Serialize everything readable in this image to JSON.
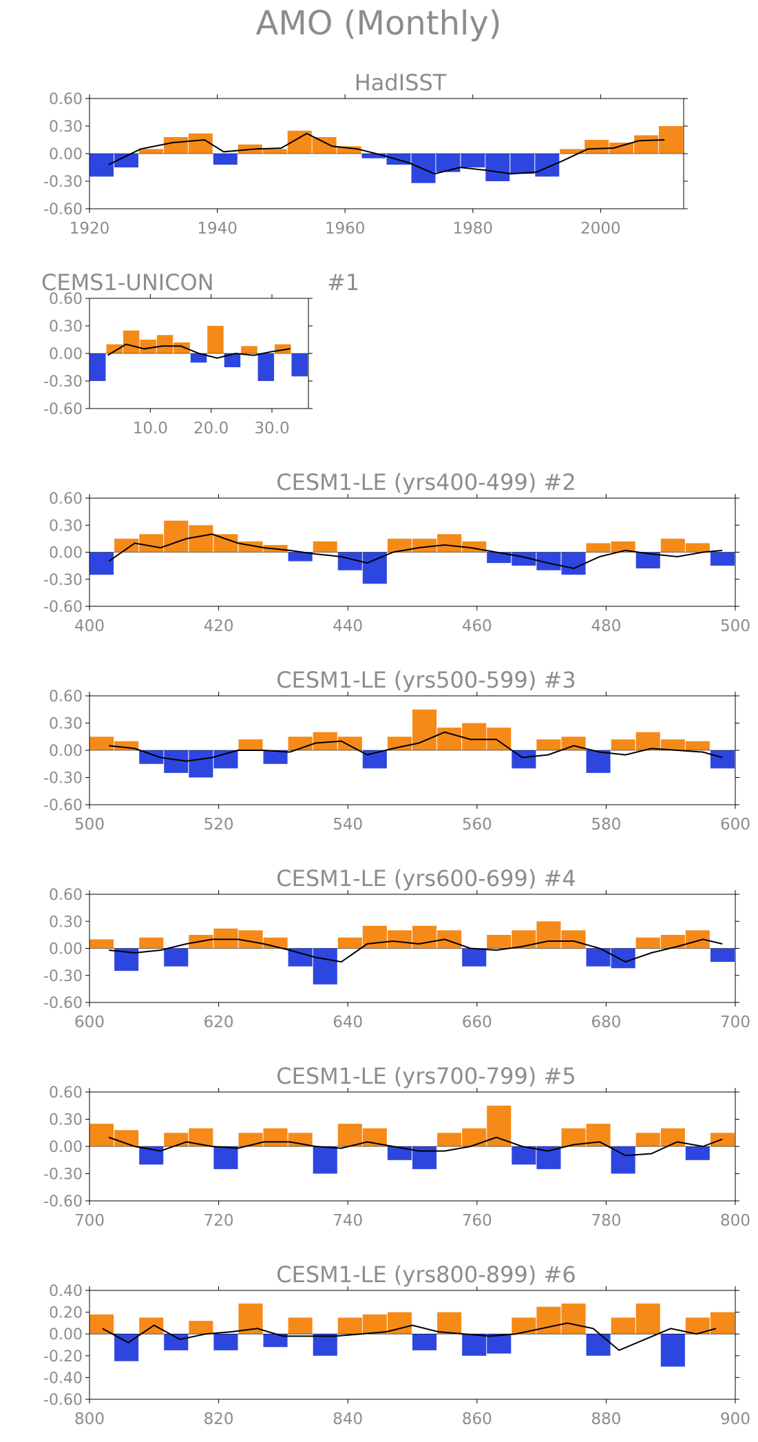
{
  "figure": {
    "title": "AMO (Monthly)"
  },
  "colors": {
    "positive": "#f58a18",
    "negative": "#2e46e0",
    "smooth": "#000000",
    "text": "#8c8c8c"
  },
  "chart_data": [
    {
      "type": "bar",
      "title": "HadISST",
      "x_range": [
        1920,
        2013
      ],
      "ylim": [
        -0.6,
        0.6
      ],
      "y_ticks": [
        "0.60",
        "0.30",
        "0.00",
        "-0.30",
        "-0.60"
      ],
      "x_ticks": [
        "1920",
        "1940",
        "1960",
        "1980",
        "2000"
      ],
      "x_tick_values": [
        1920,
        1940,
        1960,
        1980,
        2000
      ],
      "x": [
        1920,
        1924,
        1928,
        1932,
        1936,
        1940,
        1944,
        1948,
        1952,
        1956,
        1960,
        1964,
        1968,
        1972,
        1976,
        1980,
        1984,
        1988,
        1992,
        1996,
        2000,
        2004,
        2008,
        2012
      ],
      "values": [
        -0.25,
        -0.15,
        0.05,
        0.18,
        0.22,
        -0.12,
        0.1,
        0.05,
        0.25,
        0.18,
        0.08,
        -0.05,
        -0.12,
        -0.32,
        -0.2,
        -0.15,
        -0.3,
        -0.22,
        -0.25,
        0.05,
        0.15,
        0.12,
        0.2,
        0.3
      ],
      "smooth_x": [
        1923,
        1928,
        1933,
        1938,
        1941,
        1946,
        1950,
        1954,
        1958,
        1962,
        1966,
        1970,
        1974,
        1978,
        1982,
        1986,
        1990,
        1994,
        1998,
        2002,
        2006,
        2010
      ],
      "smooth": [
        -0.12,
        0.05,
        0.12,
        0.15,
        0.02,
        0.05,
        0.06,
        0.22,
        0.08,
        0.05,
        -0.02,
        -0.1,
        -0.22,
        -0.15,
        -0.18,
        -0.22,
        -0.2,
        -0.08,
        0.05,
        0.06,
        0.14,
        0.15
      ]
    },
    {
      "type": "bar",
      "title": "CEMS1-UNICON",
      "label": "#1",
      "x_range": [
        0,
        36
      ],
      "ylim": [
        -0.6,
        0.6
      ],
      "y_ticks": [
        "0.60",
        "0.30",
        "0.00",
        "-0.30",
        "-0.60"
      ],
      "x_ticks": [
        "10.0",
        "20.0",
        "30.0"
      ],
      "x_tick_values": [
        10,
        20,
        30
      ],
      "x": [
        0,
        3,
        6,
        9,
        12,
        15,
        18,
        21,
        24,
        27,
        30,
        33,
        36
      ],
      "values": [
        -0.3,
        0.1,
        0.25,
        0.15,
        0.2,
        0.12,
        -0.1,
        0.3,
        -0.15,
        0.08,
        -0.3,
        0.1,
        -0.25
      ],
      "smooth_x": [
        3,
        6,
        9,
        12,
        15,
        18,
        21,
        24,
        27,
        30,
        33
      ],
      "smooth": [
        -0.02,
        0.1,
        0.05,
        0.08,
        0.08,
        0.0,
        -0.05,
        0.0,
        -0.02,
        0.02,
        0.05
      ]
    },
    {
      "type": "bar",
      "title": "CESM1-LE (yrs400-499) #2",
      "x_range": [
        400,
        500
      ],
      "ylim": [
        -0.6,
        0.6
      ],
      "y_ticks": [
        "0.60",
        "0.30",
        "0.00",
        "-0.30",
        "-0.60"
      ],
      "x_ticks": [
        "400",
        "420",
        "440",
        "460",
        "480",
        "500"
      ],
      "x_tick_values": [
        400,
        420,
        440,
        460,
        480,
        500
      ],
      "x": [
        400,
        404,
        408,
        412,
        416,
        420,
        424,
        428,
        432,
        436,
        440,
        444,
        448,
        452,
        456,
        460,
        464,
        468,
        472,
        476,
        480,
        484,
        488,
        492,
        496,
        500
      ],
      "values": [
        -0.25,
        0.15,
        0.2,
        0.35,
        0.3,
        0.2,
        0.12,
        0.08,
        -0.1,
        0.12,
        -0.2,
        -0.35,
        0.15,
        0.15,
        0.2,
        0.12,
        -0.12,
        -0.15,
        -0.2,
        -0.25,
        0.1,
        0.12,
        -0.18,
        0.15,
        0.1,
        -0.15
      ],
      "smooth_x": [
        403,
        407,
        411,
        415,
        419,
        423,
        427,
        431,
        435,
        439,
        443,
        447,
        451,
        455,
        459,
        463,
        467,
        471,
        475,
        479,
        483,
        487,
        491,
        495,
        498
      ],
      "smooth": [
        -0.1,
        0.1,
        0.05,
        0.15,
        0.2,
        0.1,
        0.05,
        0.02,
        -0.02,
        -0.05,
        -0.12,
        0.0,
        0.05,
        0.08,
        0.05,
        0.0,
        -0.05,
        -0.12,
        -0.18,
        -0.05,
        0.02,
        -0.02,
        -0.05,
        0.0,
        0.02
      ]
    },
    {
      "type": "bar",
      "title": "CESM1-LE (yrs500-599) #3",
      "x_range": [
        500,
        600
      ],
      "ylim": [
        -0.6,
        0.6
      ],
      "y_ticks": [
        "0.60",
        "0.30",
        "0.00",
        "-0.30",
        "-0.60"
      ],
      "x_ticks": [
        "500",
        "520",
        "540",
        "560",
        "580",
        "600"
      ],
      "x_tick_values": [
        500,
        520,
        540,
        560,
        580,
        600
      ],
      "x": [
        500,
        504,
        508,
        512,
        516,
        520,
        524,
        528,
        532,
        536,
        540,
        544,
        548,
        552,
        556,
        560,
        564,
        568,
        572,
        576,
        580,
        584,
        588,
        592,
        596,
        600
      ],
      "values": [
        0.15,
        0.1,
        -0.15,
        -0.25,
        -0.3,
        -0.2,
        0.12,
        -0.15,
        0.15,
        0.2,
        0.15,
        -0.2,
        0.15,
        0.45,
        0.25,
        0.3,
        0.25,
        -0.2,
        0.12,
        0.15,
        -0.25,
        0.12,
        0.2,
        0.12,
        0.1,
        -0.2
      ],
      "smooth_x": [
        503,
        507,
        511,
        515,
        519,
        523,
        527,
        531,
        535,
        539,
        543,
        547,
        551,
        555,
        559,
        563,
        567,
        571,
        575,
        579,
        583,
        587,
        591,
        595,
        598
      ],
      "smooth": [
        0.05,
        0.02,
        -0.08,
        -0.12,
        -0.08,
        0.0,
        0.0,
        -0.02,
        0.08,
        0.1,
        -0.05,
        0.02,
        0.08,
        0.2,
        0.12,
        0.12,
        -0.08,
        -0.05,
        0.05,
        -0.02,
        -0.05,
        0.02,
        0.0,
        -0.02,
        -0.08
      ]
    },
    {
      "type": "bar",
      "title": "CESM1-LE (yrs600-699) #4",
      "x_range": [
        600,
        700
      ],
      "ylim": [
        -0.6,
        0.6
      ],
      "y_ticks": [
        "0.60",
        "0.30",
        "0.00",
        "-0.30",
        "-0.60"
      ],
      "x_ticks": [
        "600",
        "620",
        "640",
        "660",
        "680",
        "700"
      ],
      "x_tick_values": [
        600,
        620,
        640,
        660,
        680,
        700
      ],
      "x": [
        600,
        604,
        608,
        612,
        616,
        620,
        624,
        628,
        632,
        636,
        640,
        644,
        648,
        652,
        656,
        660,
        664,
        668,
        672,
        676,
        680,
        684,
        688,
        692,
        696,
        700
      ],
      "values": [
        0.1,
        -0.25,
        0.12,
        -0.2,
        0.15,
        0.22,
        0.2,
        0.12,
        -0.2,
        -0.4,
        0.12,
        0.25,
        0.2,
        0.25,
        0.2,
        -0.2,
        0.15,
        0.2,
        0.3,
        0.2,
        -0.2,
        -0.22,
        0.12,
        0.15,
        0.2,
        -0.15
      ],
      "smooth_x": [
        603,
        607,
        611,
        615,
        619,
        623,
        627,
        631,
        635,
        639,
        643,
        647,
        651,
        655,
        659,
        663,
        667,
        671,
        675,
        679,
        683,
        687,
        691,
        695,
        698
      ],
      "smooth": [
        -0.02,
        -0.05,
        -0.02,
        0.05,
        0.1,
        0.1,
        0.05,
        -0.02,
        -0.1,
        -0.15,
        0.05,
        0.08,
        0.05,
        0.1,
        0.0,
        -0.02,
        0.02,
        0.08,
        0.08,
        0.0,
        -0.15,
        -0.05,
        0.02,
        0.1,
        0.05
      ]
    },
    {
      "type": "bar",
      "title": "CESM1-LE (yrs700-799) #5",
      "x_range": [
        700,
        800
      ],
      "ylim": [
        -0.6,
        0.6
      ],
      "y_ticks": [
        "0.60",
        "0.30",
        "0.00",
        "-0.30",
        "-0.60"
      ],
      "x_ticks": [
        "700",
        "720",
        "740",
        "760",
        "780",
        "800"
      ],
      "x_tick_values": [
        700,
        720,
        740,
        760,
        780,
        800
      ],
      "x": [
        700,
        704,
        708,
        712,
        716,
        720,
        724,
        728,
        732,
        736,
        740,
        744,
        748,
        752,
        756,
        760,
        764,
        768,
        772,
        776,
        780,
        784,
        788,
        792,
        796,
        800
      ],
      "values": [
        0.25,
        0.18,
        -0.2,
        0.15,
        0.2,
        -0.25,
        0.15,
        0.2,
        0.15,
        -0.3,
        0.25,
        0.2,
        -0.15,
        -0.25,
        0.15,
        0.2,
        0.45,
        -0.2,
        -0.25,
        0.2,
        0.25,
        -0.3,
        0.15,
        0.2,
        -0.15,
        0.15
      ],
      "smooth_x": [
        703,
        707,
        711,
        715,
        719,
        723,
        727,
        731,
        735,
        739,
        743,
        747,
        751,
        755,
        759,
        763,
        767,
        771,
        775,
        779,
        783,
        787,
        791,
        795,
        798
      ],
      "smooth": [
        0.1,
        0.0,
        -0.05,
        0.05,
        0.0,
        -0.02,
        0.05,
        0.05,
        0.0,
        -0.02,
        0.05,
        0.0,
        -0.05,
        -0.05,
        0.0,
        0.1,
        0.0,
        -0.05,
        0.02,
        0.05,
        -0.1,
        -0.08,
        0.05,
        0.0,
        0.08
      ]
    },
    {
      "type": "bar",
      "title": "CESM1-LE (yrs800-899) #6",
      "x_range": [
        800,
        900
      ],
      "ylim": [
        -0.6,
        0.4
      ],
      "y_ticks": [
        "0.40",
        "0.20",
        "0.00",
        "-0.20",
        "-0.40",
        "-0.60"
      ],
      "x_ticks": [
        "800",
        "820",
        "840",
        "860",
        "880",
        "900"
      ],
      "x_tick_values": [
        800,
        820,
        840,
        860,
        880,
        900
      ],
      "x": [
        800,
        804,
        808,
        812,
        816,
        820,
        824,
        828,
        832,
        836,
        840,
        844,
        848,
        852,
        856,
        860,
        864,
        868,
        872,
        876,
        880,
        884,
        888,
        892,
        896,
        900
      ],
      "values": [
        0.18,
        -0.25,
        0.15,
        -0.15,
        0.12,
        -0.15,
        0.28,
        -0.12,
        0.15,
        -0.2,
        0.15,
        0.18,
        0.2,
        -0.15,
        0.2,
        -0.2,
        -0.18,
        0.15,
        0.25,
        0.28,
        -0.2,
        0.15,
        0.28,
        -0.3,
        0.15,
        0.2
      ],
      "smooth_x": [
        802,
        806,
        810,
        814,
        818,
        822,
        826,
        830,
        834,
        838,
        842,
        846,
        850,
        854,
        858,
        862,
        866,
        870,
        874,
        878,
        882,
        886,
        890,
        894,
        897
      ],
      "smooth": [
        0.05,
        -0.08,
        0.08,
        -0.05,
        0.0,
        0.02,
        0.05,
        -0.02,
        -0.02,
        -0.02,
        0.0,
        0.02,
        0.08,
        0.02,
        0.0,
        -0.02,
        0.0,
        0.05,
        0.1,
        0.05,
        -0.15,
        -0.05,
        0.05,
        0.0,
        0.05
      ]
    }
  ]
}
